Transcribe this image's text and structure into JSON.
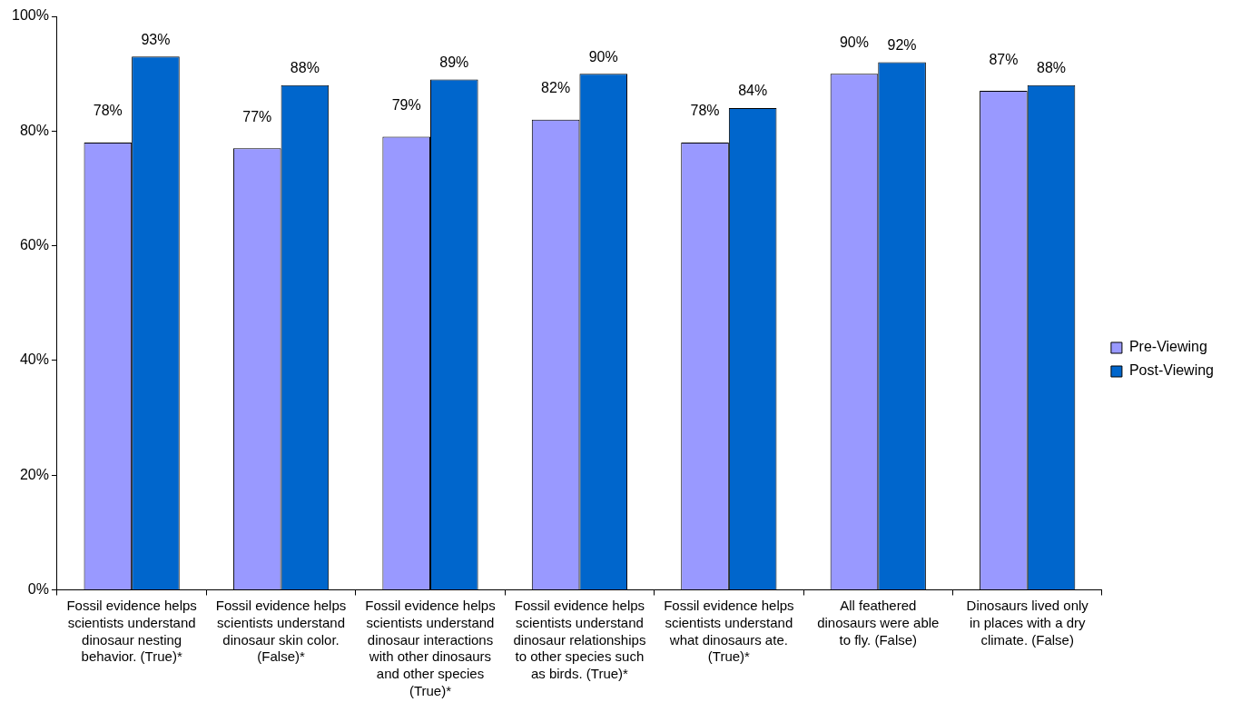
{
  "chart_data": {
    "type": "bar",
    "categories": [
      "Fossil evidence helps scientists understand dinosaur nesting behavior. (True)*",
      "Fossil evidence helps scientists understand dinosaur skin color. (False)*",
      "Fossil evidence helps scientists understand dinosaur interactions with other dinosaurs and other species (True)*",
      "Fossil evidence helps scientists understand dinosaur relationships to other species such as birds. (True)*",
      "Fossil evidence helps scientists understand what dinosaurs ate. (True)*",
      "All feathered dinosaurs were able to fly. (False)",
      "Dinosaurs lived only in places with a dry climate. (False)"
    ],
    "series": [
      {
        "name": "Pre-Viewing",
        "color": "#9999ff",
        "values": [
          78,
          77,
          79,
          82,
          78,
          90,
          87
        ],
        "value_labels": [
          "78%",
          "77%",
          "79%",
          "82%",
          "78%",
          "90%",
          "87%"
        ]
      },
      {
        "name": "Post-Viewing",
        "color": "#0066cc",
        "values": [
          93,
          88,
          89,
          90,
          84,
          92,
          88
        ],
        "value_labels": [
          "93%",
          "88%",
          "89%",
          "90%",
          "84%",
          "92%",
          "88%"
        ]
      }
    ],
    "ylim": [
      0,
      100
    ],
    "yticks": [
      {
        "value": 0,
        "label": "0%"
      },
      {
        "value": 20,
        "label": "20%"
      },
      {
        "value": 40,
        "label": "40%"
      },
      {
        "value": 60,
        "label": "60%"
      },
      {
        "value": 80,
        "label": "80%"
      },
      {
        "value": 100,
        "label": "100%"
      }
    ],
    "legend": "right"
  }
}
